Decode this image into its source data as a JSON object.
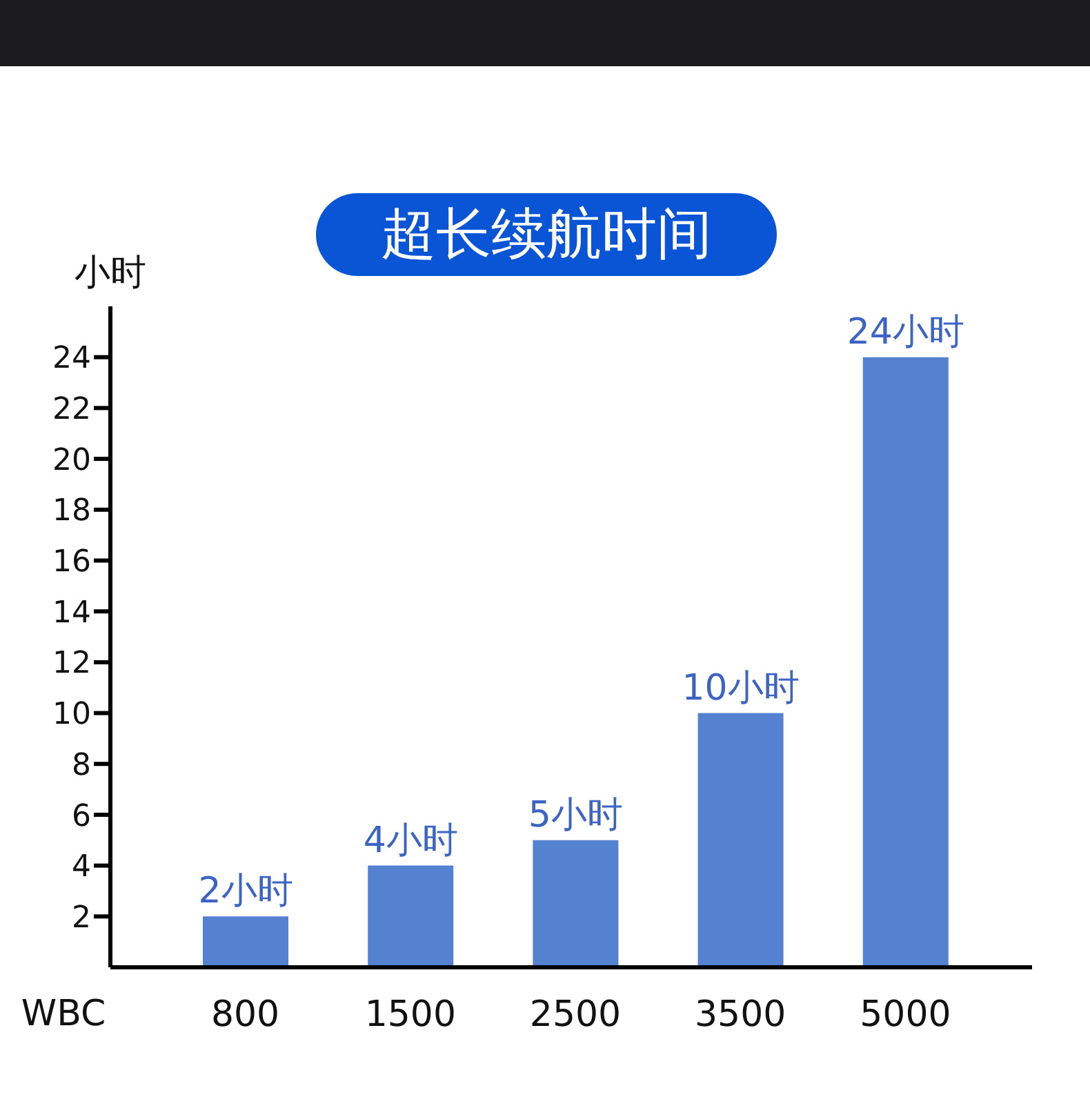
{
  "chart_data": {
    "type": "bar",
    "title": "超长续航时间",
    "ylabel": "小时",
    "xlabel": "WBC",
    "categories": [
      "800",
      "1500",
      "2500",
      "3500",
      "5000"
    ],
    "values": [
      2,
      4,
      5,
      10,
      24
    ],
    "value_labels": [
      "2小时",
      "4小时",
      "5小时",
      "10小时",
      "24小时"
    ],
    "color": "#5581d1",
    "ylim": [
      0,
      26
    ],
    "yticks": [
      2,
      4,
      6,
      8,
      10,
      12,
      14,
      16,
      18,
      20,
      22,
      24
    ],
    "grid": false,
    "legend": false
  }
}
